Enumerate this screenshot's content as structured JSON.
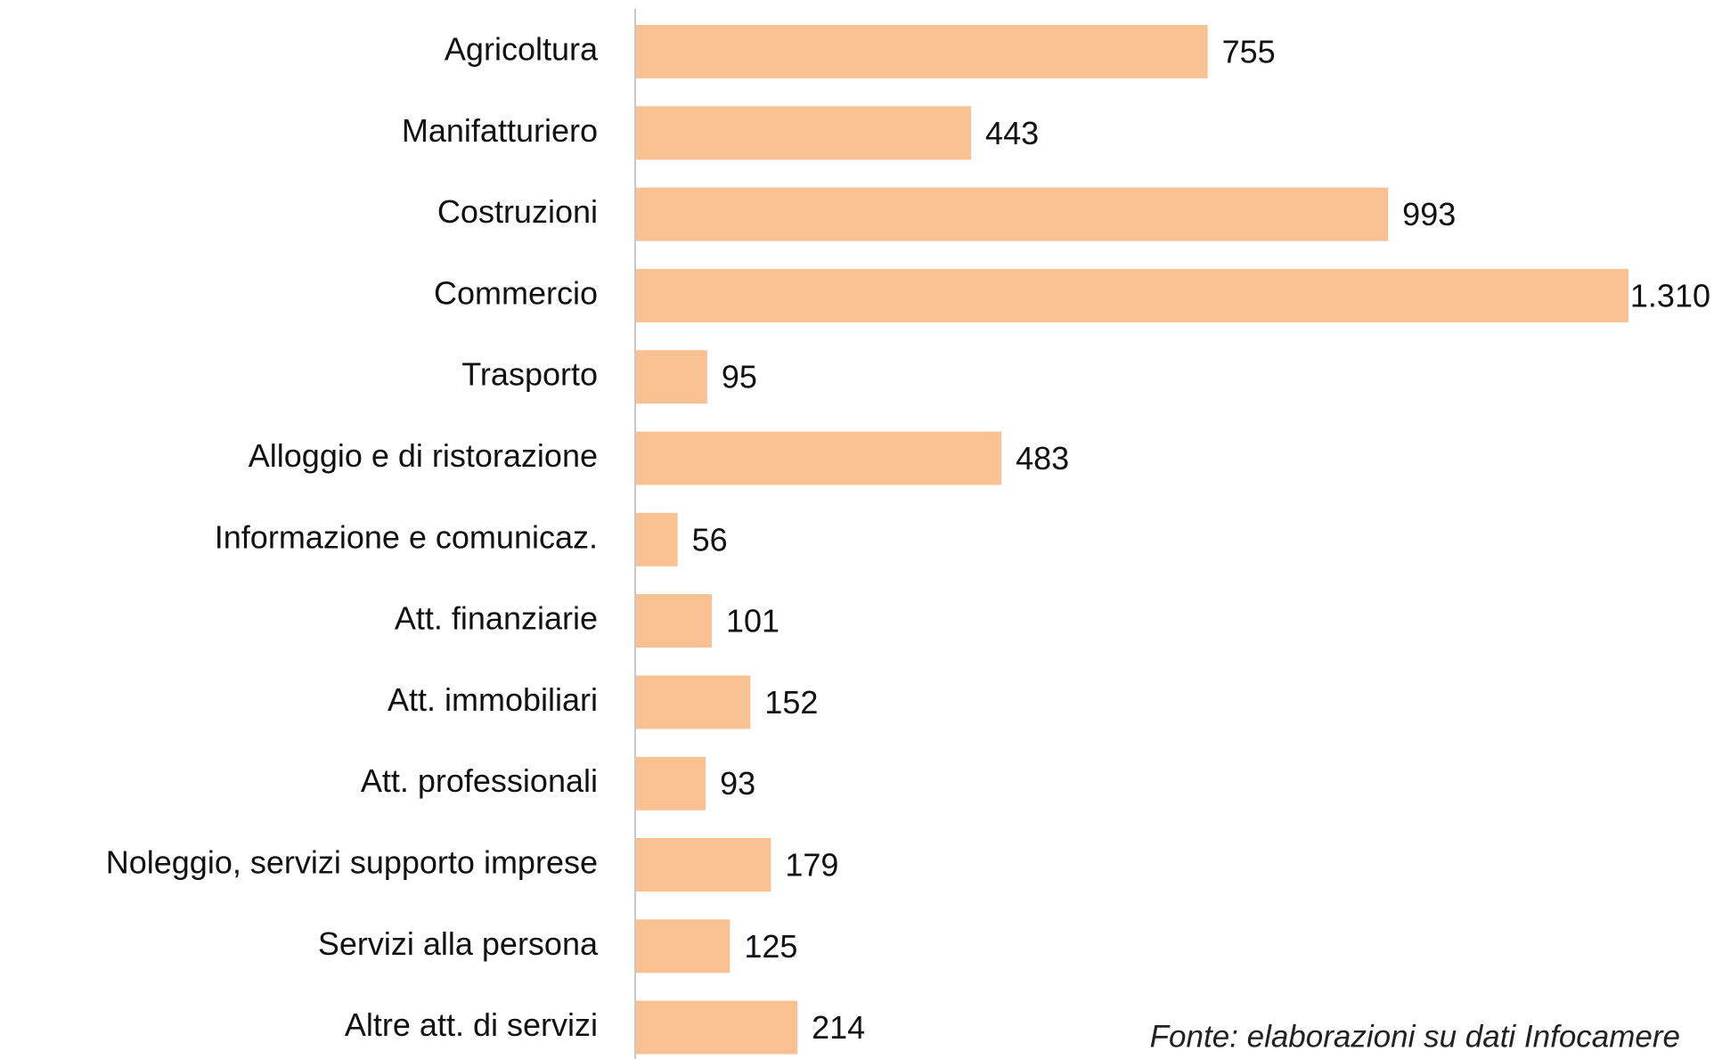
{
  "chart_data": {
    "type": "barh",
    "categories": [
      "Agricoltura",
      "Manifatturiero",
      "Costruzioni",
      "Commercio",
      "Trasporto",
      "Alloggio e di ristorazione",
      "Informazione e comunicaz.",
      "Att. finanziarie",
      "Att. immobiliari",
      "Att. professionali",
      "Noleggio, servizi supporto imprese",
      "Servizi alla persona",
      "Altre att. di servizi"
    ],
    "values": [
      755,
      443,
      993,
      1310,
      95,
      483,
      56,
      101,
      152,
      93,
      179,
      125,
      214
    ],
    "value_labels": [
      "755",
      "443",
      "993",
      "1.310",
      "95",
      "483",
      "56",
      "101",
      "152",
      "93",
      "179",
      "125",
      "214"
    ],
    "color": "#f9c091",
    "source": "Fonte: elaborazioni su dati Infocamere"
  }
}
